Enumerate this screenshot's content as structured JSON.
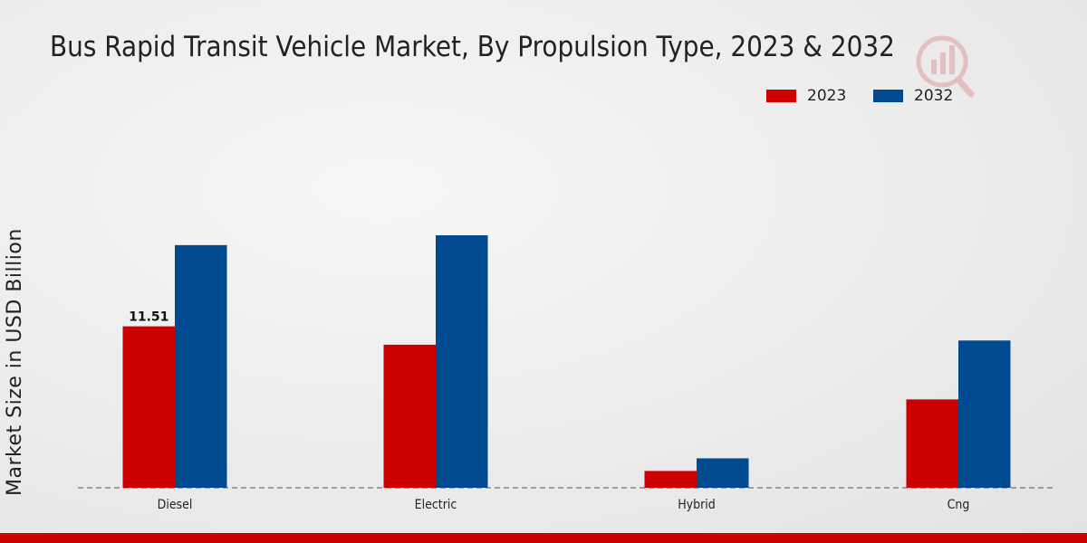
{
  "colors": {
    "series_2023": "#cc0000",
    "series_2032": "#004a8f",
    "accent_bar": "#cc0000"
  },
  "chart_data": {
    "type": "bar",
    "title": "Bus Rapid Transit Vehicle Market, By Propulsion Type, 2023 & 2032",
    "xlabel": "",
    "ylabel": "Market Size in USD Billion",
    "categories": [
      "Diesel",
      "Electric",
      "Hybrid",
      "Cng"
    ],
    "series": [
      {
        "name": "2023",
        "values": [
          11.51,
          10.2,
          1.2,
          6.3
        ]
      },
      {
        "name": "2032",
        "values": [
          17.3,
          18.0,
          2.1,
          10.5
        ]
      }
    ],
    "data_labels": [
      {
        "series": 0,
        "category": 0,
        "text": "11.51"
      }
    ],
    "ylim": [
      0,
      24
    ],
    "legend_position": "top-right",
    "grid": false
  }
}
